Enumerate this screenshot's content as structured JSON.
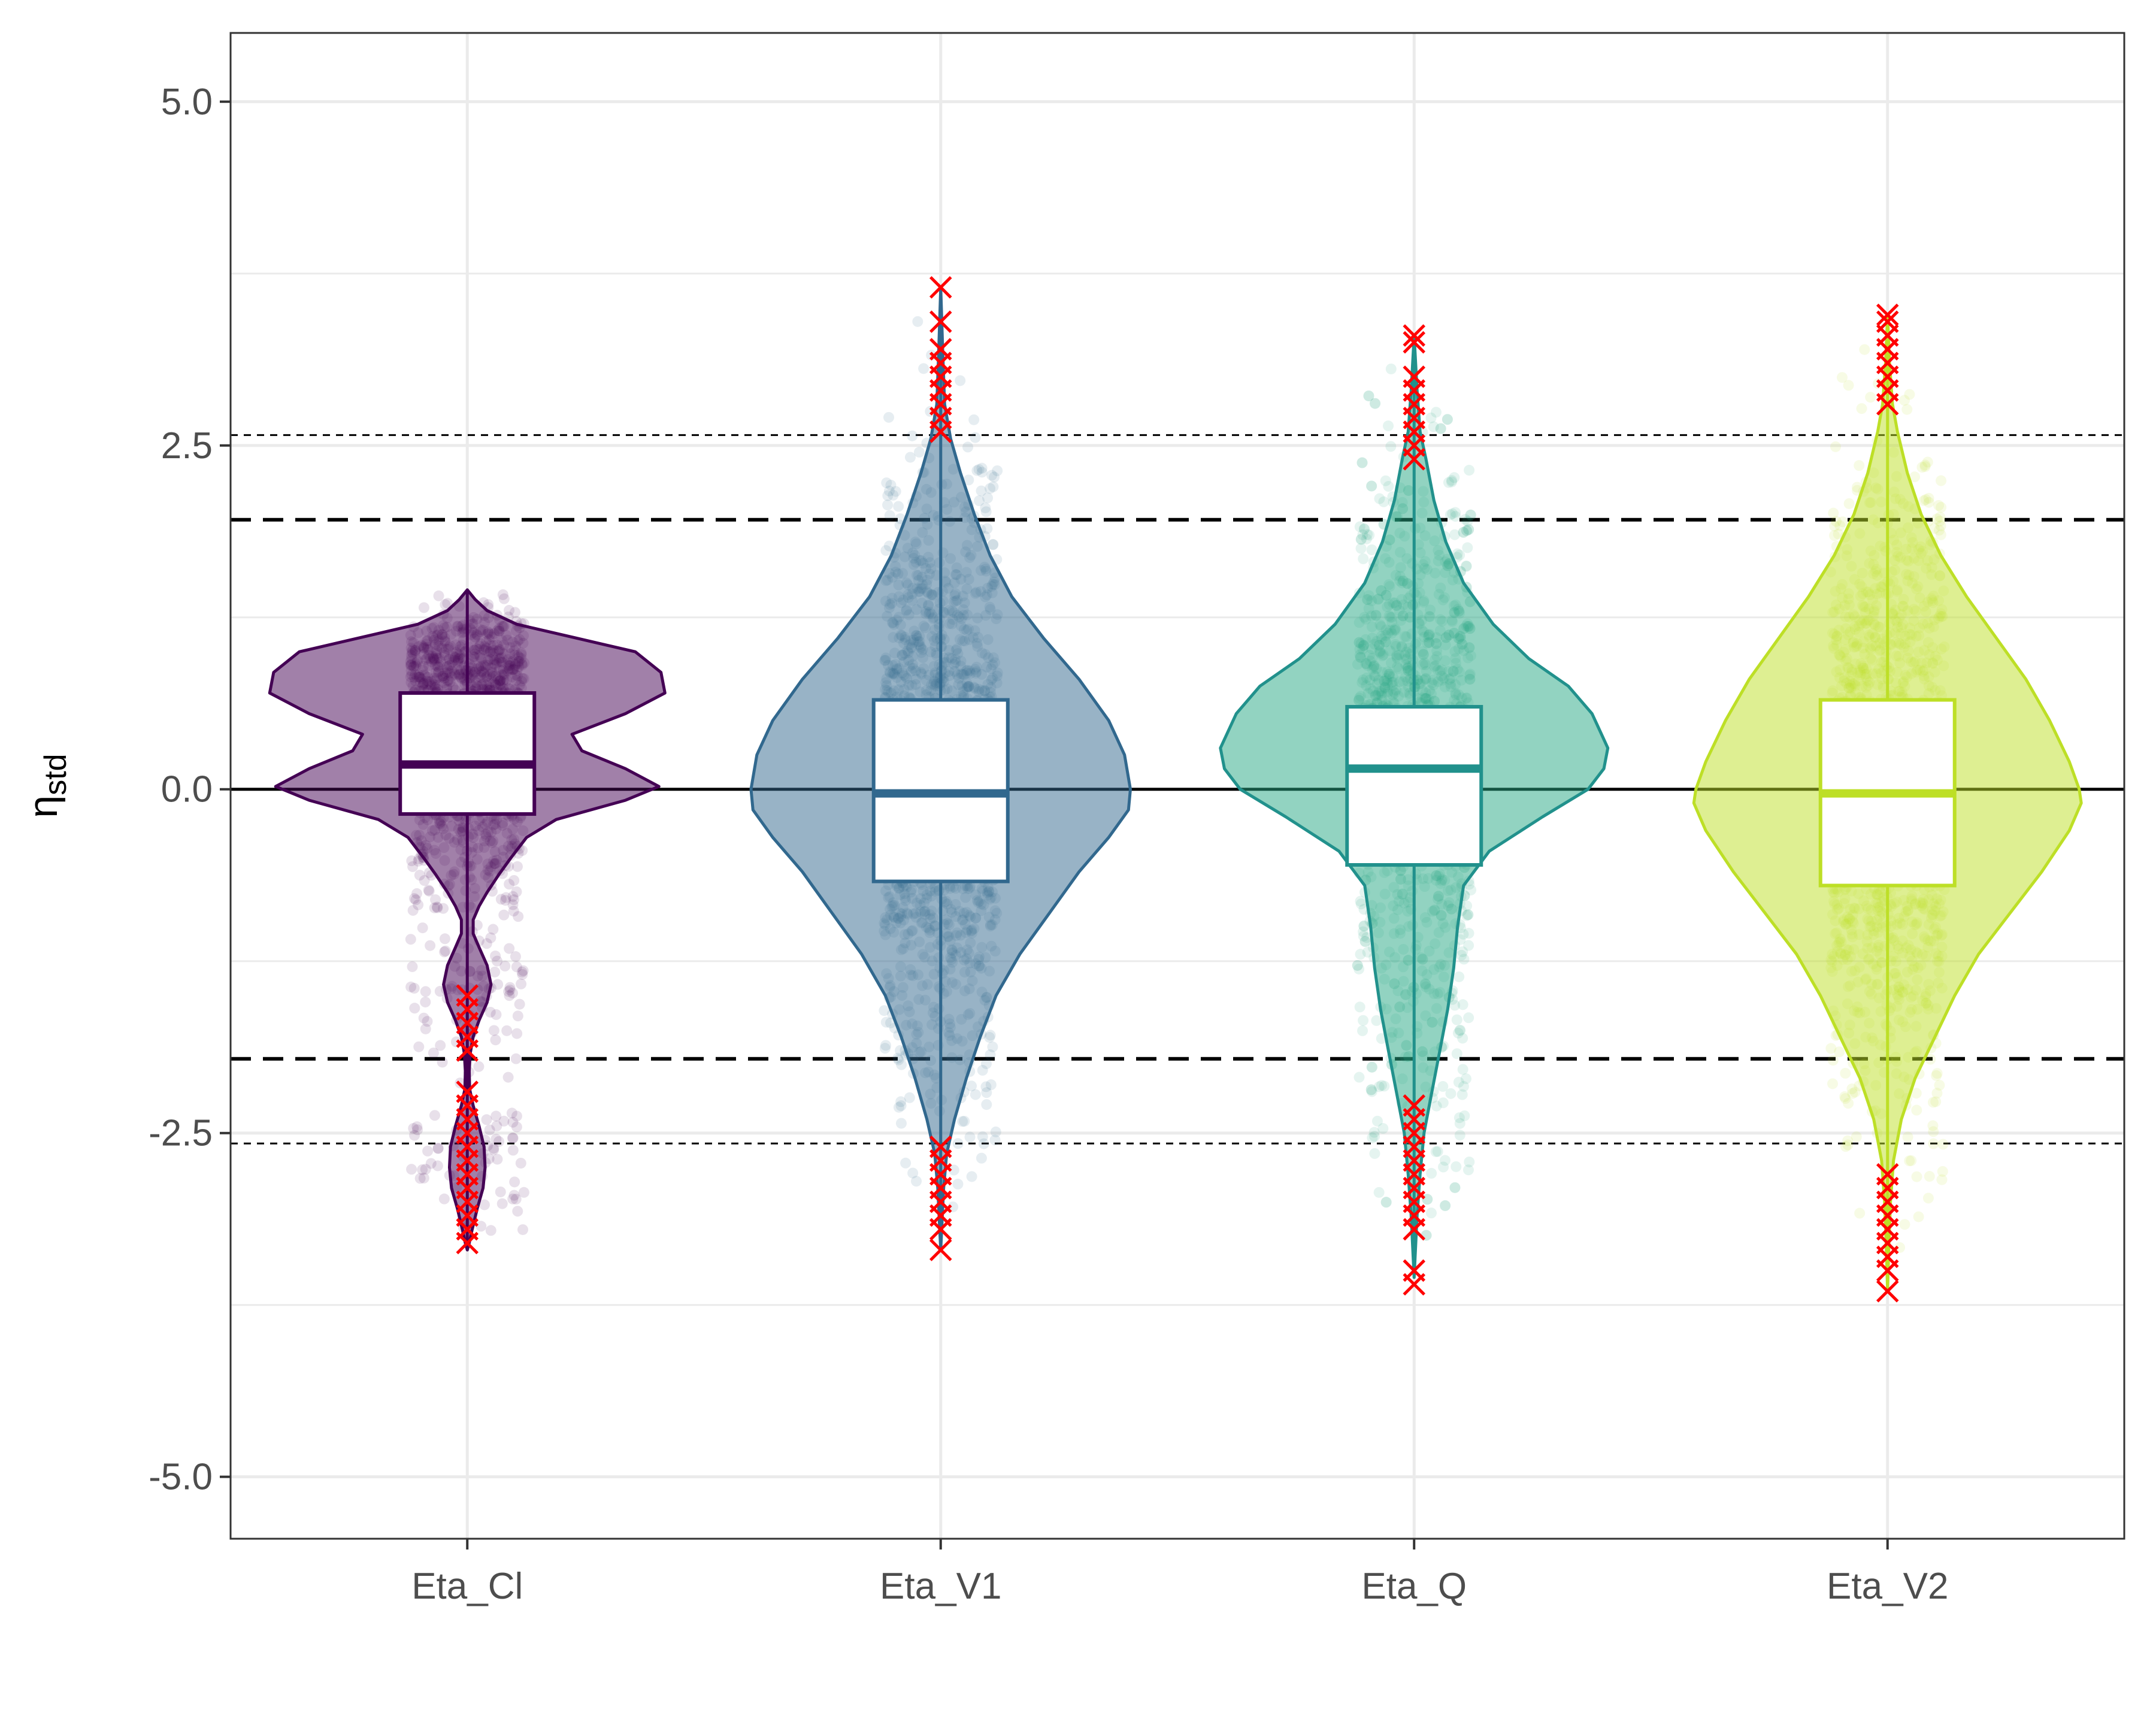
{
  "chart_data": {
    "type": "violin",
    "title": "",
    "xlabel": "",
    "ylabel": "η",
    "ylabel_subscript": "std",
    "categories": [
      "Eta_Cl",
      "Eta_V1",
      "Eta_Q",
      "Eta_V2"
    ],
    "ylim": [
      -5.45,
      5.5
    ],
    "yticks": [
      5.0,
      2.5,
      0.0,
      -2.5,
      -5.0
    ],
    "ytick_labels": [
      "5.0",
      "2.5",
      "0.0",
      "-2.5",
      "-5.0"
    ],
    "grid": true,
    "reference_lines": [
      {
        "y": 0,
        "style": "solid"
      },
      {
        "y": 1.96,
        "style": "dashed"
      },
      {
        "y": -1.96,
        "style": "dashed"
      },
      {
        "y": 2.576,
        "style": "dotted"
      },
      {
        "y": -2.576,
        "style": "dotted"
      }
    ],
    "series": [
      {
        "category": "Eta_Cl",
        "color": "#440154",
        "box": {
          "q1": -0.18,
          "median": 0.18,
          "q3": 0.7
        },
        "whisker": [
          -3.35,
          1.45
        ],
        "density": [
          [
            1.45,
            0.0
          ],
          [
            1.38,
            0.04
          ],
          [
            1.3,
            0.1
          ],
          [
            1.2,
            0.25
          ],
          [
            1.1,
            0.55
          ],
          [
            1.0,
            0.85
          ],
          [
            0.85,
            0.98
          ],
          [
            0.7,
            1.0
          ],
          [
            0.55,
            0.8
          ],
          [
            0.4,
            0.53
          ],
          [
            0.28,
            0.58
          ],
          [
            0.15,
            0.8
          ],
          [
            0.02,
            0.97
          ],
          [
            -0.08,
            0.8
          ],
          [
            -0.22,
            0.45
          ],
          [
            -0.35,
            0.3
          ],
          [
            -0.5,
            0.22
          ],
          [
            -0.62,
            0.16
          ],
          [
            -0.75,
            0.1
          ],
          [
            -0.85,
            0.06
          ],
          [
            -0.95,
            0.03
          ],
          [
            -1.05,
            0.03
          ],
          [
            -1.15,
            0.06
          ],
          [
            -1.28,
            0.1
          ],
          [
            -1.42,
            0.12
          ],
          [
            -1.55,
            0.1
          ],
          [
            -1.68,
            0.06
          ],
          [
            -1.8,
            0.03
          ],
          [
            -1.92,
            0.015
          ],
          [
            -2.05,
            0.01
          ],
          [
            -2.18,
            0.012
          ],
          [
            -2.3,
            0.03
          ],
          [
            -2.45,
            0.06
          ],
          [
            -2.6,
            0.085
          ],
          [
            -2.75,
            0.09
          ],
          [
            -2.9,
            0.08
          ],
          [
            -3.05,
            0.05
          ],
          [
            -3.2,
            0.025
          ],
          [
            -3.3,
            0.01
          ],
          [
            -3.35,
            0.0
          ]
        ],
        "outliers_high": [],
        "outliers_low": [
          -1.5,
          -1.6,
          -1.7,
          -1.8,
          -1.9,
          -2.2,
          -2.3,
          -2.4,
          -2.5,
          -2.6,
          -2.7,
          -2.8,
          -2.9,
          -3.0,
          -3.1,
          -3.2,
          -3.3
        ]
      },
      {
        "category": "Eta_V1",
        "color": "#31688e",
        "box": {
          "q1": -0.67,
          "median": -0.03,
          "q3": 0.65
        },
        "whisker": [
          -3.35,
          3.65
        ],
        "density": [
          [
            3.65,
            0.0
          ],
          [
            3.2,
            0.01
          ],
          [
            2.8,
            0.02
          ],
          [
            2.55,
            0.05
          ],
          [
            2.3,
            0.1
          ],
          [
            2.0,
            0.17
          ],
          [
            1.7,
            0.25
          ],
          [
            1.4,
            0.36
          ],
          [
            1.1,
            0.52
          ],
          [
            0.8,
            0.7
          ],
          [
            0.5,
            0.85
          ],
          [
            0.25,
            0.93
          ],
          [
            0.0,
            0.96
          ],
          [
            -0.15,
            0.95
          ],
          [
            -0.35,
            0.85
          ],
          [
            -0.6,
            0.7
          ],
          [
            -0.9,
            0.55
          ],
          [
            -1.2,
            0.4
          ],
          [
            -1.5,
            0.28
          ],
          [
            -1.8,
            0.2
          ],
          [
            -2.1,
            0.13
          ],
          [
            -2.4,
            0.07
          ],
          [
            -2.65,
            0.03
          ],
          [
            -2.9,
            0.015
          ],
          [
            -3.2,
            0.005
          ],
          [
            -3.35,
            0.0
          ]
        ],
        "outliers_high": [
          2.6,
          2.7,
          2.8,
          2.9,
          3.0,
          3.1,
          3.2,
          3.4,
          3.65
        ],
        "outliers_low": [
          -2.6,
          -2.7,
          -2.8,
          -2.9,
          -3.0,
          -3.1,
          -3.2,
          -3.35
        ]
      },
      {
        "category": "Eta_Q",
        "color": "#21918c",
        "fill": "#26a784",
        "box": {
          "q1": -0.55,
          "median": 0.15,
          "q3": 0.6
        },
        "whisker": [
          -3.55,
          3.3
        ],
        "density": [
          [
            3.3,
            0.0
          ],
          [
            2.9,
            0.015
          ],
          [
            2.6,
            0.03
          ],
          [
            2.4,
            0.06
          ],
          [
            2.1,
            0.1
          ],
          [
            1.8,
            0.16
          ],
          [
            1.5,
            0.25
          ],
          [
            1.2,
            0.4
          ],
          [
            0.95,
            0.58
          ],
          [
            0.75,
            0.78
          ],
          [
            0.55,
            0.9
          ],
          [
            0.3,
            0.98
          ],
          [
            0.15,
            0.96
          ],
          [
            0.0,
            0.88
          ],
          [
            -0.2,
            0.65
          ],
          [
            -0.45,
            0.38
          ],
          [
            -0.7,
            0.25
          ],
          [
            -1.0,
            0.22
          ],
          [
            -1.3,
            0.2
          ],
          [
            -1.6,
            0.17
          ],
          [
            -1.9,
            0.13
          ],
          [
            -2.2,
            0.09
          ],
          [
            -2.5,
            0.05
          ],
          [
            -2.8,
            0.03
          ],
          [
            -3.1,
            0.015
          ],
          [
            -3.4,
            0.005
          ],
          [
            -3.55,
            0.0
          ]
        ],
        "outliers_high": [
          2.4,
          2.5,
          2.6,
          2.7,
          2.8,
          2.9,
          3.0,
          3.25,
          3.3
        ],
        "outliers_low": [
          -2.3,
          -2.4,
          -2.5,
          -2.6,
          -2.7,
          -2.8,
          -2.9,
          -3.0,
          -3.1,
          -3.2,
          -3.5,
          -3.6
        ]
      },
      {
        "category": "Eta_V2",
        "color": "#bddf26",
        "box": {
          "q1": -0.7,
          "median": -0.03,
          "q3": 0.65
        },
        "whisker": [
          -3.65,
          3.45
        ],
        "density": [
          [
            3.45,
            0.0
          ],
          [
            3.1,
            0.01
          ],
          [
            2.8,
            0.025
          ],
          [
            2.6,
            0.05
          ],
          [
            2.3,
            0.1
          ],
          [
            2.0,
            0.17
          ],
          [
            1.7,
            0.27
          ],
          [
            1.4,
            0.4
          ],
          [
            1.1,
            0.55
          ],
          [
            0.8,
            0.7
          ],
          [
            0.5,
            0.82
          ],
          [
            0.2,
            0.92
          ],
          [
            0.0,
            0.97
          ],
          [
            -0.1,
            0.98
          ],
          [
            -0.3,
            0.92
          ],
          [
            -0.6,
            0.78
          ],
          [
            -0.9,
            0.62
          ],
          [
            -1.2,
            0.46
          ],
          [
            -1.5,
            0.34
          ],
          [
            -1.8,
            0.24
          ],
          [
            -2.1,
            0.14
          ],
          [
            -2.4,
            0.07
          ],
          [
            -2.7,
            0.03
          ],
          [
            -3.0,
            0.015
          ],
          [
            -3.3,
            0.007
          ],
          [
            -3.65,
            0.0
          ]
        ],
        "outliers_high": [
          2.8,
          2.9,
          3.0,
          3.1,
          3.2,
          3.3,
          3.4,
          3.45
        ],
        "outliers_low": [
          -2.8,
          -2.9,
          -3.0,
          -3.1,
          -3.2,
          -3.3,
          -3.4,
          -3.5,
          -3.65
        ]
      }
    ]
  }
}
